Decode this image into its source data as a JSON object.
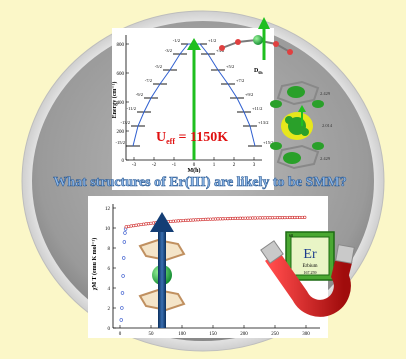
{
  "energy_plot": {
    "y_label": "Energy (cm⁻¹)",
    "x_label": "M(ħ)",
    "y_ticks": [
      "0",
      "200",
      "400",
      "600",
      "800"
    ],
    "x_ticks": [
      "-3",
      "-2",
      "-1",
      "0",
      "1",
      "2",
      "3"
    ],
    "levels_left": [
      "-1/2",
      "-3/2",
      "-5/2",
      "-7/2",
      "-9/2",
      "-11/2",
      "-13/2",
      "-15/2"
    ],
    "levels_right": [
      "+1/2",
      "+3/2",
      "+5/2",
      "+7/2",
      "+9/2",
      "+11/2",
      "+13/2",
      "+15/2"
    ],
    "ueff_text": "U",
    "ueff_sub": "eff",
    "ueff_value": " = 1150K"
  },
  "molecule_labels": {
    "symmetry_label": "D",
    "symmetry_sub": "6h",
    "dist1": "2.429",
    "dist2": "2.014",
    "dist3": "2.429"
  },
  "banner": {
    "question": "What structures of Er(III) are likely to be SMM?"
  },
  "chit_plot": {
    "y_label": "χM T (emu K mol⁻¹)",
    "y_ticks": [
      "0",
      "2",
      "4",
      "6",
      "8",
      "10",
      "12"
    ],
    "x_ticks": [
      "0",
      "50",
      "100",
      "150",
      "200",
      "250",
      "300"
    ]
  },
  "element_tile": {
    "atomic_number": "68",
    "symbol": "Er",
    "name": "Erbium",
    "mass": "167.259"
  },
  "colors": {
    "background": "#fbf7c8",
    "disc": "#9e9e9e",
    "banner_text": "#8fb8e8",
    "ueff_text": "#e01010",
    "green_arrow": "#1fbf1f",
    "magnet_red": "#d41a1a"
  }
}
